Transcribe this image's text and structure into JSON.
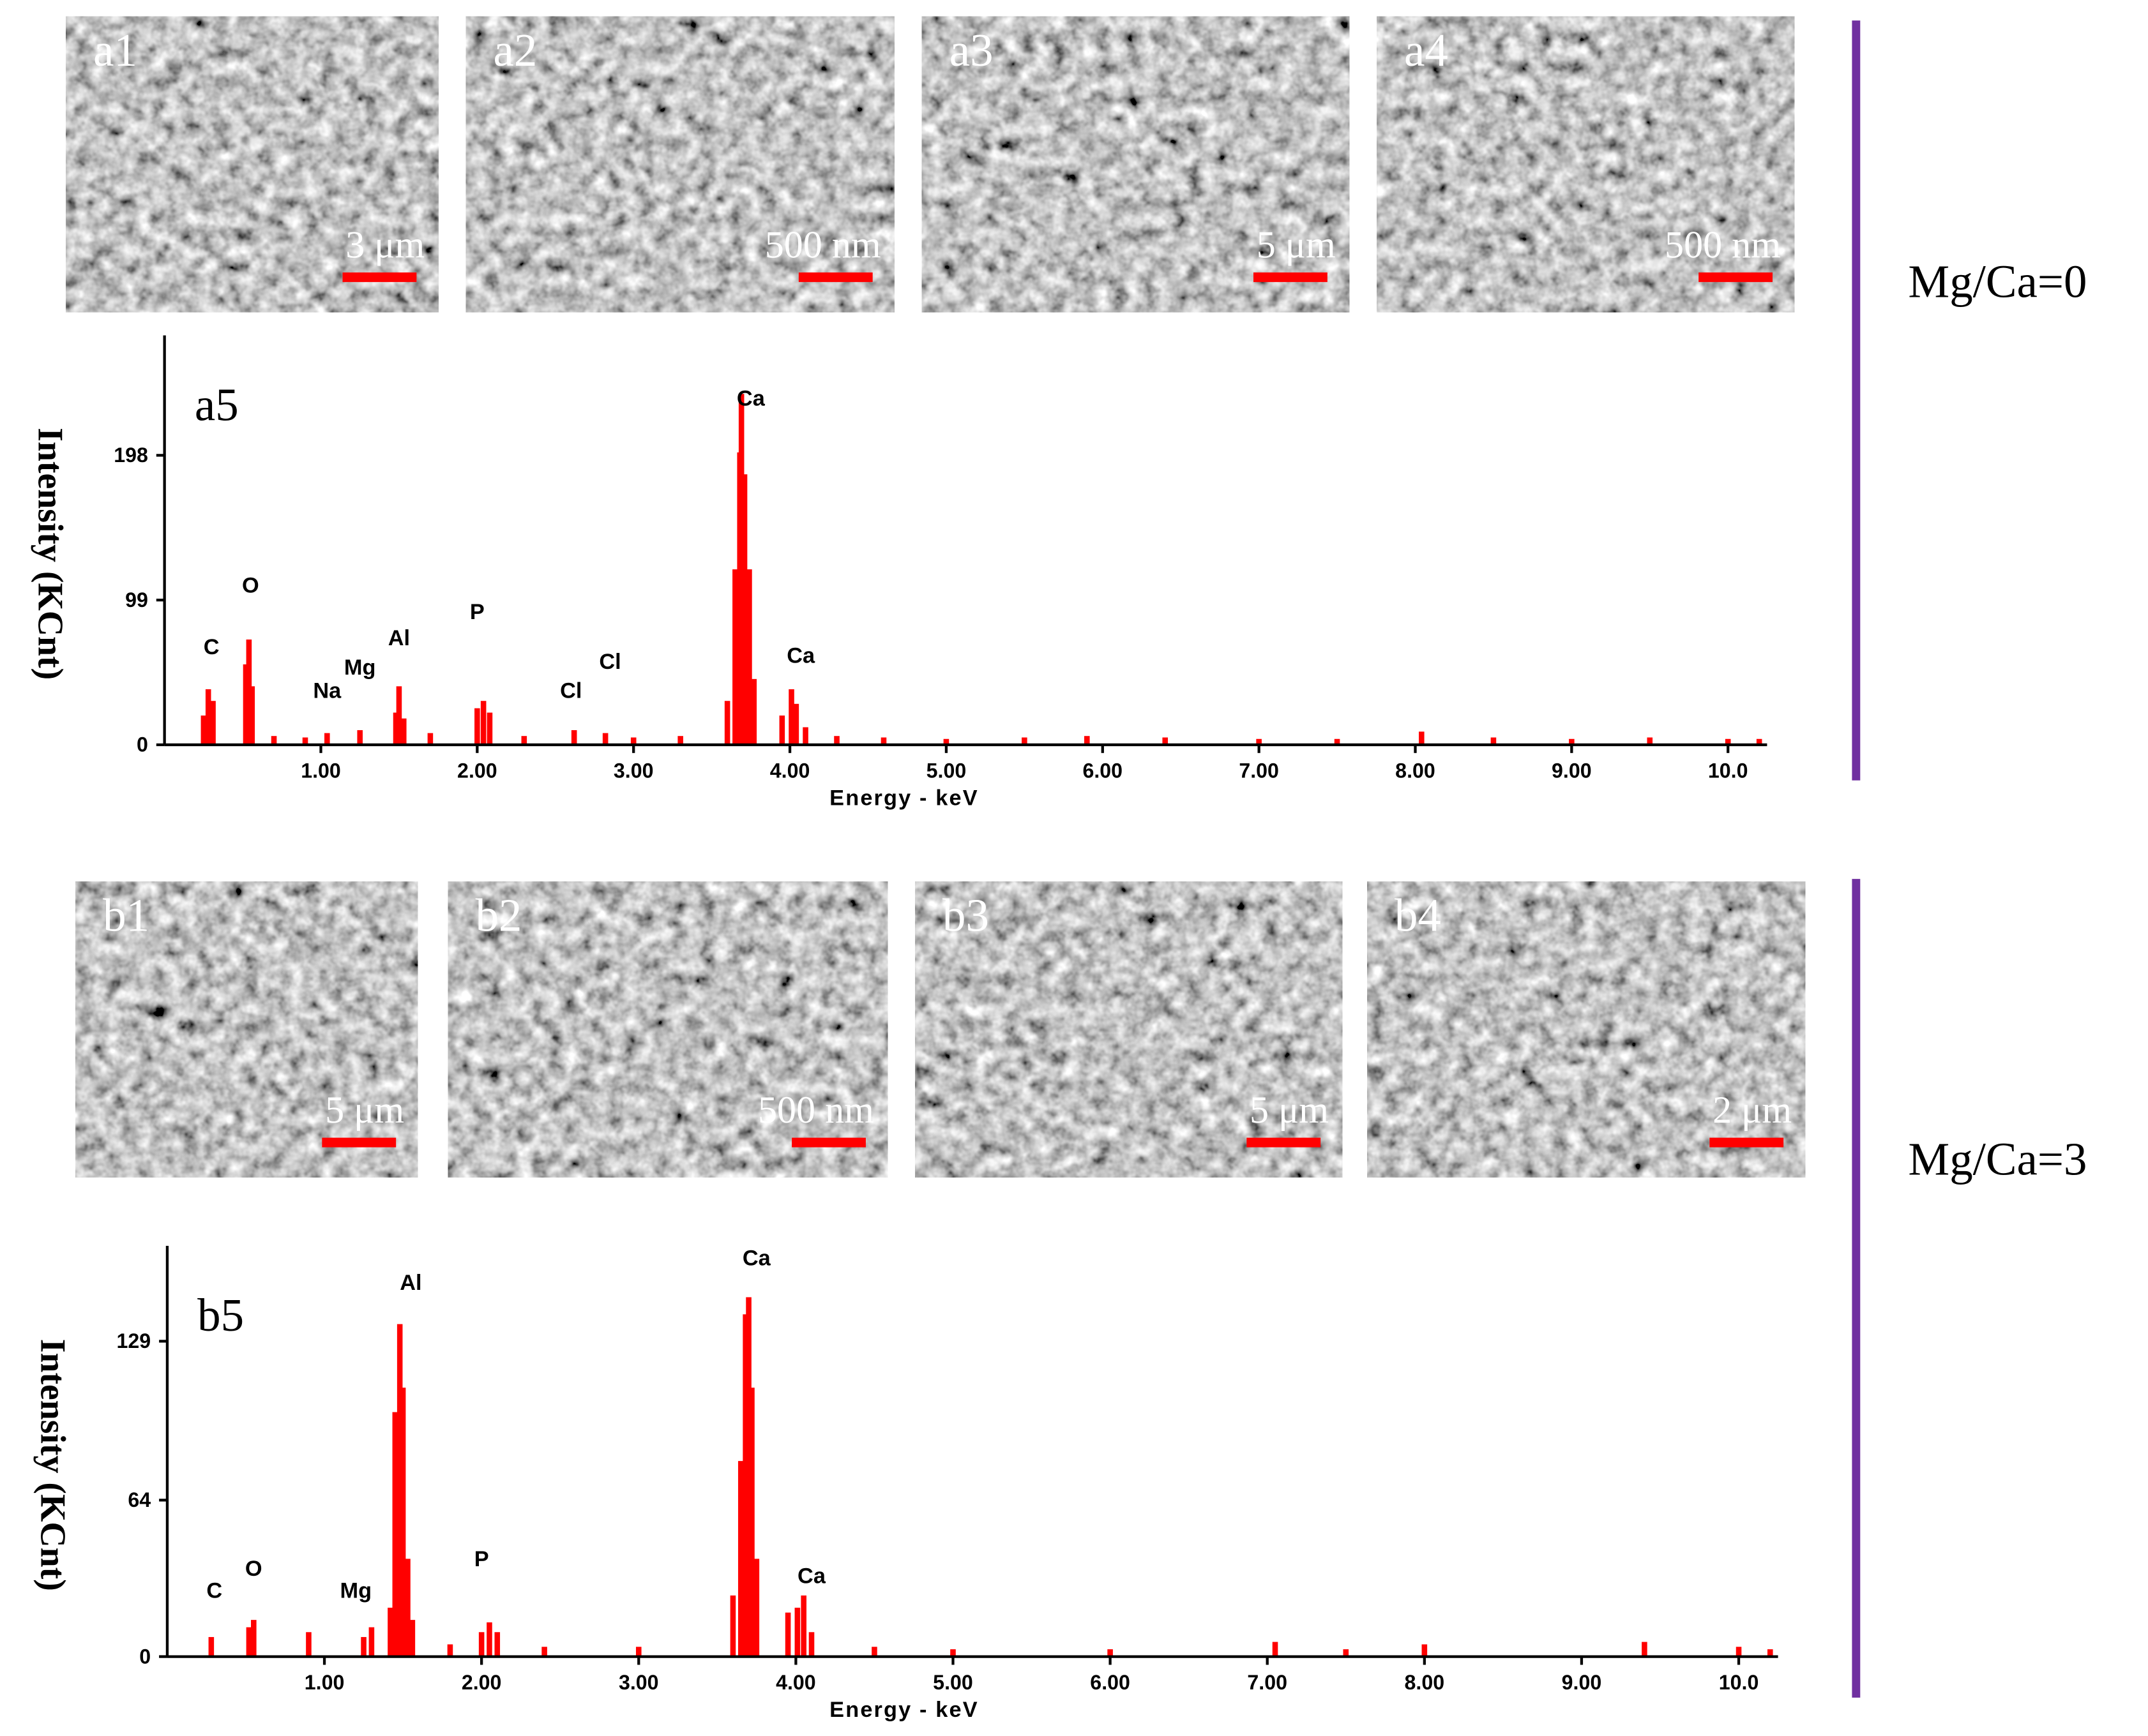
{
  "figure": {
    "groups": [
      {
        "label": "Mg/Ca=0",
        "images": [
          {
            "label": "a1",
            "scale_bar": "3 μm"
          },
          {
            "label": "a2",
            "scale_bar": "500 nm"
          },
          {
            "label": "a3",
            "scale_bar": "5 μm"
          },
          {
            "label": "a4",
            "scale_bar": "500 nm"
          }
        ]
      },
      {
        "label": "Mg/Ca=3",
        "images": [
          {
            "label": "b1",
            "scale_bar": "5 μm"
          },
          {
            "label": "b2",
            "scale_bar": "500 nm"
          },
          {
            "label": "b3",
            "scale_bar": "5 μm"
          },
          {
            "label": "b4",
            "scale_bar": "2 μm"
          }
        ]
      }
    ]
  },
  "chart_data": [
    {
      "type": "bar",
      "label": "a5",
      "xlabel": "Energy - keV",
      "ylabel": "Intensity (KCnt)",
      "color": "#ff0000",
      "x": [
        0.25,
        0.28,
        0.31,
        0.52,
        0.54,
        0.56,
        0.7,
        0.9,
        1.04,
        1.25,
        1.48,
        1.5,
        1.53,
        1.7,
        2.0,
        2.04,
        2.08,
        2.3,
        2.62,
        2.82,
        3.0,
        3.3,
        3.6,
        3.65,
        3.68,
        3.69,
        3.71,
        3.74,
        3.77,
        3.95,
        4.01,
        4.04,
        4.1,
        4.3,
        4.6,
        5.0,
        5.5,
        5.9,
        6.4,
        7.0,
        7.5,
        8.04,
        8.5,
        9.0,
        9.5,
        10.0,
        10.2
      ],
      "values": [
        20,
        38,
        30,
        55,
        72,
        40,
        6,
        5,
        8,
        10,
        22,
        40,
        18,
        8,
        25,
        30,
        22,
        6,
        10,
        8,
        5,
        6,
        30,
        120,
        200,
        240,
        185,
        120,
        45,
        20,
        38,
        28,
        12,
        6,
        5,
        4,
        5,
        6,
        5,
        4,
        4,
        9,
        5,
        4,
        5,
        4,
        4
      ],
      "annotations": [
        {
          "text": "C",
          "x": 0.3,
          "y": 62
        },
        {
          "text": "O",
          "x": 0.55,
          "y": 104
        },
        {
          "text": "Na",
          "x": 1.04,
          "y": 32
        },
        {
          "text": "Mg",
          "x": 1.25,
          "y": 48
        },
        {
          "text": "Al",
          "x": 1.5,
          "y": 68
        },
        {
          "text": "P",
          "x": 2.0,
          "y": 86
        },
        {
          "text": "Cl",
          "x": 2.6,
          "y": 32
        },
        {
          "text": "Cl",
          "x": 2.85,
          "y": 52
        },
        {
          "text": "Ca",
          "x": 3.75,
          "y": 232
        },
        {
          "text": "Ca",
          "x": 4.07,
          "y": 56
        }
      ],
      "xlim": [
        0,
        10.25
      ],
      "ylim": [
        0,
        280
      ],
      "xticks": [
        {
          "value": 1,
          "label": "1.00"
        },
        {
          "value": 2,
          "label": "2.00"
        },
        {
          "value": 3,
          "label": "3.00"
        },
        {
          "value": 4,
          "label": "4.00"
        },
        {
          "value": 5,
          "label": "5.00"
        },
        {
          "value": 6,
          "label": "6.00"
        },
        {
          "value": 7,
          "label": "7.00"
        },
        {
          "value": 8,
          "label": "8.00"
        },
        {
          "value": 9,
          "label": "9.00"
        },
        {
          "value": 10,
          "label": "10.0"
        }
      ],
      "yticks": [
        0,
        99,
        198
      ]
    },
    {
      "type": "bar",
      "label": "b5",
      "xlabel": "Energy - keV",
      "ylabel": "Intensity (KCnt)",
      "color": "#ff0000",
      "x": [
        0.28,
        0.52,
        0.55,
        0.9,
        1.25,
        1.3,
        1.42,
        1.45,
        1.48,
        1.5,
        1.53,
        1.56,
        1.8,
        2.0,
        2.05,
        2.1,
        2.4,
        3.0,
        3.6,
        3.65,
        3.68,
        3.7,
        3.72,
        3.75,
        3.95,
        4.01,
        4.05,
        4.1,
        4.5,
        5.0,
        6.0,
        7.05,
        7.5,
        8.0,
        9.4,
        10.0,
        10.2
      ],
      "values": [
        8,
        12,
        15,
        10,
        8,
        12,
        20,
        100,
        136,
        110,
        40,
        15,
        5,
        10,
        14,
        10,
        4,
        4,
        25,
        80,
        140,
        147,
        110,
        40,
        18,
        20,
        25,
        10,
        4,
        3,
        3,
        6,
        3,
        5,
        6,
        4,
        3
      ],
      "annotations": [
        {
          "text": "C",
          "x": 0.3,
          "y": 24
        },
        {
          "text": "O",
          "x": 0.55,
          "y": 33
        },
        {
          "text": "Mg",
          "x": 1.2,
          "y": 24
        },
        {
          "text": "Al",
          "x": 1.55,
          "y": 150
        },
        {
          "text": "P",
          "x": 2.0,
          "y": 37
        },
        {
          "text": "Ca",
          "x": 3.75,
          "y": 160
        },
        {
          "text": "Ca",
          "x": 4.1,
          "y": 30
        }
      ],
      "xlim": [
        0,
        10.25
      ],
      "ylim": [
        0,
        168
      ],
      "xticks": [
        {
          "value": 1,
          "label": "1.00"
        },
        {
          "value": 2,
          "label": "2.00"
        },
        {
          "value": 3,
          "label": "3.00"
        },
        {
          "value": 4,
          "label": "4.00"
        },
        {
          "value": 5,
          "label": "5.00"
        },
        {
          "value": 6,
          "label": "6.00"
        },
        {
          "value": 7,
          "label": "7.00"
        },
        {
          "value": 8,
          "label": "8.00"
        },
        {
          "value": 9,
          "label": "9.00"
        },
        {
          "value": 10,
          "label": "10.0"
        }
      ],
      "yticks": [
        0,
        64,
        129
      ]
    }
  ]
}
